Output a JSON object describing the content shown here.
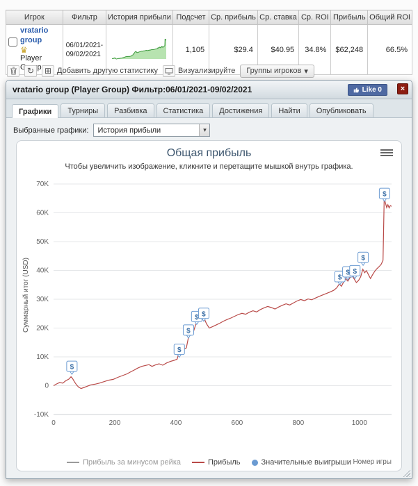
{
  "table": {
    "headers": [
      "Игрок",
      "Фильтр",
      "История прибыли",
      "Подсчет",
      "Ср. прибыль",
      "Ср. ставка",
      "Ср. ROI",
      "Прибыль",
      "Общий ROI"
    ],
    "row": {
      "player_name": "vratario group",
      "player_type": "Player Group",
      "filter_line1": "06/01/2021-",
      "filter_line2": "09/02/2021",
      "count": "1,105",
      "avg_profit": "$29.4",
      "avg_stake": "$40.95",
      "avg_roi": "34.8%",
      "profit": "$62,248",
      "total_roi": "66.5%"
    }
  },
  "toolbar": {
    "add_statistic": "Добавить другую статистику",
    "visualize": "Визуализируйте",
    "player_groups": "Группы игроков",
    "groups_caret": "▾"
  },
  "dialog": {
    "title": "vratario group (Player Group) Фильтр:06/01/2021-09/02/2021",
    "like_label": "Like 0",
    "close_label": "×",
    "tabs": [
      "Графики",
      "Турниры",
      "Разбивка",
      "Статистика",
      "Достижения",
      "Найти",
      "Опубликовать"
    ],
    "active_tab": "Графики",
    "selector_label": "Выбранные графики:",
    "selector_value": "История прибыли",
    "selector_caret": "▾"
  },
  "chart_data": {
    "type": "line",
    "title": "Общая прибыль",
    "subtitle": "Чтобы увеличить изображение, кликните и перетащите мышкой внутрь графика.",
    "ylabel": "Суммарный итог (USD)",
    "xlabel": "Номер игры",
    "xlim": [
      0,
      1105
    ],
    "ylim": [
      -10000,
      70000
    ],
    "xticks": [
      0,
      200,
      400,
      600,
      800,
      1000
    ],
    "yticks": [
      -10000,
      0,
      10000,
      20000,
      30000,
      40000,
      50000,
      60000,
      70000
    ],
    "ytick_labels": [
      "-10K",
      "0",
      "10K",
      "20K",
      "30K",
      "40K",
      "50K",
      "60K",
      "70K"
    ],
    "grid": "horizontal",
    "line_color": "#b94a48",
    "marker_color": "#6b9bd2",
    "spark_line_color": "#3d9a3d",
    "spark_fill_color": "#b7e3b0",
    "legend": [
      {
        "label": "Прибыль за минусом рейка",
        "color": "#9a9a9a",
        "type": "line"
      },
      {
        "label": "Прибыль",
        "color": "#b94a48",
        "type": "line"
      },
      {
        "label": "Значительные выигрыши",
        "color": "#6b9bd2",
        "type": "marker"
      }
    ],
    "series": [
      [
        0,
        0
      ],
      [
        10,
        600
      ],
      [
        20,
        1100
      ],
      [
        30,
        900
      ],
      [
        40,
        1700
      ],
      [
        50,
        2300
      ],
      [
        57,
        3100
      ],
      [
        62,
        2500
      ],
      [
        68,
        1400
      ],
      [
        75,
        300
      ],
      [
        82,
        -500
      ],
      [
        90,
        -1000
      ],
      [
        100,
        -600
      ],
      [
        110,
        -200
      ],
      [
        122,
        300
      ],
      [
        135,
        500
      ],
      [
        150,
        900
      ],
      [
        165,
        1400
      ],
      [
        180,
        1900
      ],
      [
        195,
        2200
      ],
      [
        210,
        2900
      ],
      [
        225,
        3500
      ],
      [
        240,
        4100
      ],
      [
        252,
        4800
      ],
      [
        263,
        5400
      ],
      [
        275,
        6100
      ],
      [
        288,
        6700
      ],
      [
        300,
        7000
      ],
      [
        312,
        7300
      ],
      [
        322,
        6700
      ],
      [
        333,
        7200
      ],
      [
        345,
        7600
      ],
      [
        357,
        7100
      ],
      [
        370,
        7900
      ],
      [
        382,
        8400
      ],
      [
        394,
        8800
      ],
      [
        404,
        9200
      ],
      [
        411,
        11900
      ],
      [
        419,
        12300
      ],
      [
        427,
        12700
      ],
      [
        434,
        13100
      ],
      [
        441,
        16800
      ],
      [
        449,
        18000
      ],
      [
        457,
        18600
      ],
      [
        464,
        21000
      ],
      [
        471,
        22600
      ],
      [
        478,
        23300
      ],
      [
        486,
        24100
      ],
      [
        493,
        23200
      ],
      [
        500,
        21500
      ],
      [
        509,
        20000
      ],
      [
        520,
        20500
      ],
      [
        532,
        21100
      ],
      [
        544,
        21700
      ],
      [
        556,
        22400
      ],
      [
        568,
        23000
      ],
      [
        580,
        23500
      ],
      [
        592,
        24100
      ],
      [
        604,
        24700
      ],
      [
        616,
        25100
      ],
      [
        628,
        24800
      ],
      [
        640,
        25500
      ],
      [
        652,
        26000
      ],
      [
        664,
        25600
      ],
      [
        676,
        26400
      ],
      [
        688,
        27000
      ],
      [
        700,
        27500
      ],
      [
        712,
        27100
      ],
      [
        724,
        26600
      ],
      [
        736,
        27300
      ],
      [
        748,
        27900
      ],
      [
        760,
        28400
      ],
      [
        772,
        28000
      ],
      [
        784,
        28700
      ],
      [
        796,
        29400
      ],
      [
        808,
        29900
      ],
      [
        820,
        29500
      ],
      [
        832,
        30100
      ],
      [
        844,
        29800
      ],
      [
        856,
        30400
      ],
      [
        868,
        31000
      ],
      [
        880,
        31500
      ],
      [
        892,
        32000
      ],
      [
        904,
        32500
      ],
      [
        916,
        33100
      ],
      [
        926,
        34000
      ],
      [
        934,
        35300
      ],
      [
        941,
        34500
      ],
      [
        948,
        35900
      ],
      [
        955,
        37100
      ],
      [
        962,
        36300
      ],
      [
        969,
        37500
      ],
      [
        976,
        38200
      ],
      [
        983,
        37000
      ],
      [
        990,
        35800
      ],
      [
        997,
        36500
      ],
      [
        1004,
        37800
      ],
      [
        1011,
        40400
      ],
      [
        1017,
        39200
      ],
      [
        1023,
        39900
      ],
      [
        1029,
        38600
      ],
      [
        1036,
        37200
      ],
      [
        1043,
        38500
      ],
      [
        1050,
        39700
      ],
      [
        1057,
        40600
      ],
      [
        1064,
        41300
      ],
      [
        1071,
        42100
      ],
      [
        1077,
        43500
      ],
      [
        1081,
        65200
      ],
      [
        1085,
        63400
      ],
      [
        1089,
        61800
      ],
      [
        1093,
        62800
      ],
      [
        1097,
        61700
      ],
      [
        1101,
        62500
      ],
      [
        1105,
        62248
      ]
    ],
    "significant_wins": [
      [
        60,
        6600
      ],
      [
        411,
        12500
      ],
      [
        441,
        19200
      ],
      [
        468,
        23900
      ],
      [
        491,
        25000
      ],
      [
        936,
        37700
      ],
      [
        962,
        39400
      ],
      [
        985,
        39800
      ],
      [
        1012,
        44400
      ],
      [
        1082,
        66600
      ]
    ]
  }
}
